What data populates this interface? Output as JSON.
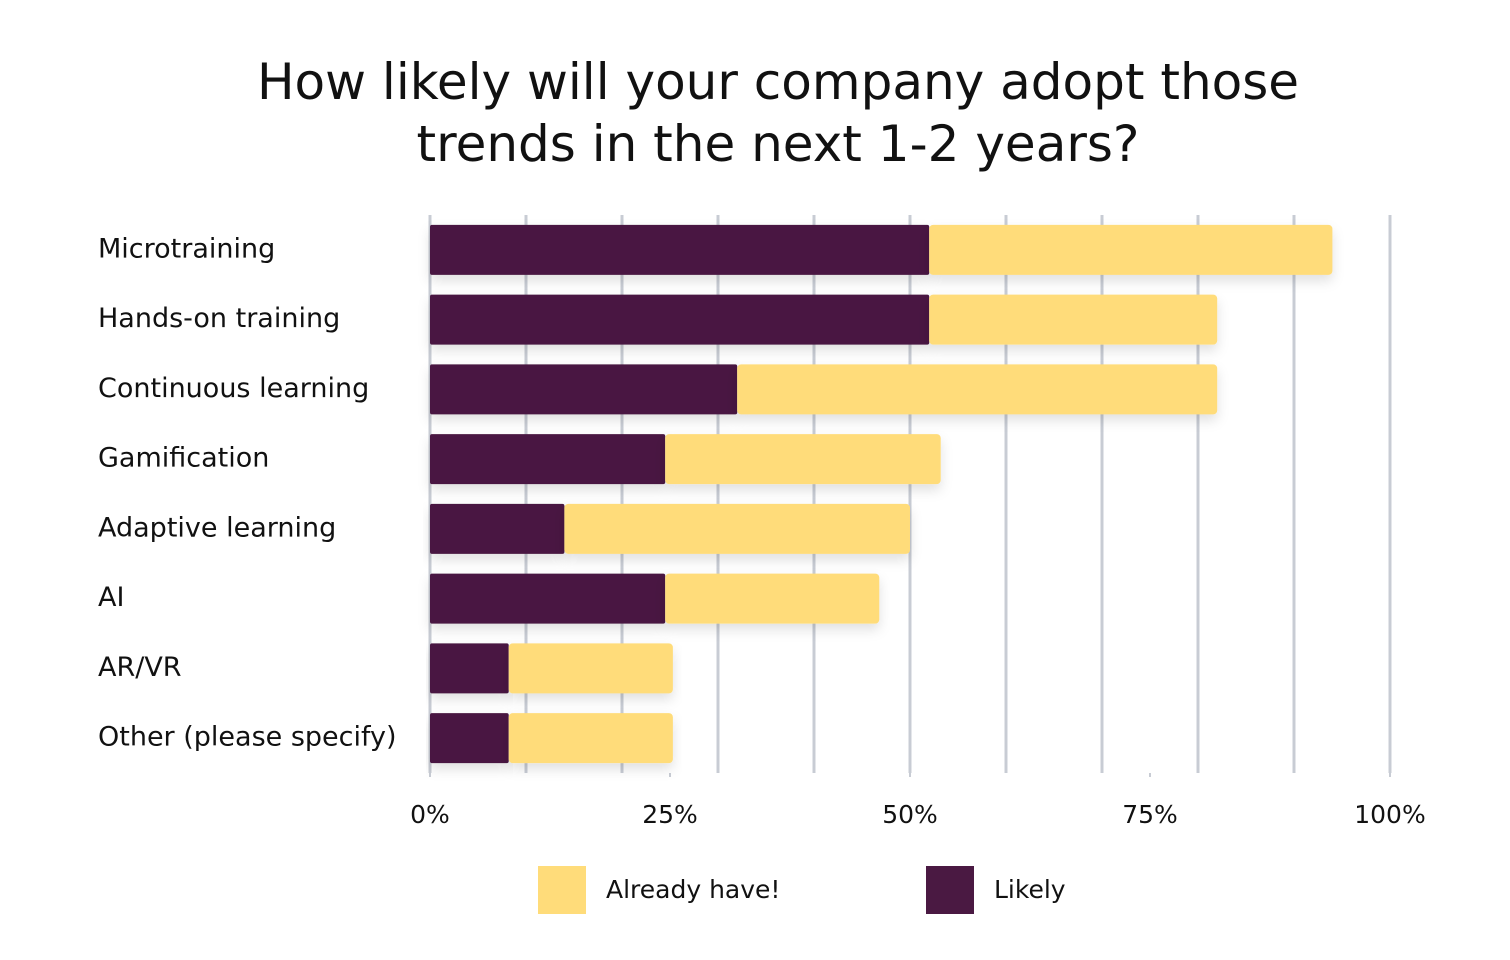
{
  "chart_data": {
    "type": "stacked_bar_horizontal",
    "title": "How likely will your company adopt those trends in the next 1-2 years?",
    "categories": [
      "Microtraining",
      "Hands-on training",
      "Continuous learning",
      "Gamification",
      "Adaptive learning",
      "AI",
      "AR/VR",
      "Other (please specify)"
    ],
    "series": [
      {
        "name": "Already have!",
        "color": "#ffdc7a",
        "values": [
          42,
          30,
          50,
          28.7,
          36,
          22.3,
          17.1,
          17.1
        ]
      },
      {
        "name": "Likely",
        "color": "#4a1942",
        "values": [
          52,
          52,
          32,
          24.5,
          14,
          24.5,
          8.2,
          8.2
        ]
      }
    ],
    "xlim": [
      0,
      100
    ],
    "xticks": [
      {
        "value": 0,
        "label": "0%"
      },
      {
        "value": 25,
        "label": "25%"
      },
      {
        "value": 50,
        "label": "50%"
      },
      {
        "value": 75,
        "label": "75%"
      },
      {
        "value": 100,
        "label": "100%"
      }
    ],
    "xgrid": [
      10,
      20,
      30,
      40,
      50,
      60,
      70,
      80,
      90,
      100
    ],
    "legend": "bottom"
  }
}
